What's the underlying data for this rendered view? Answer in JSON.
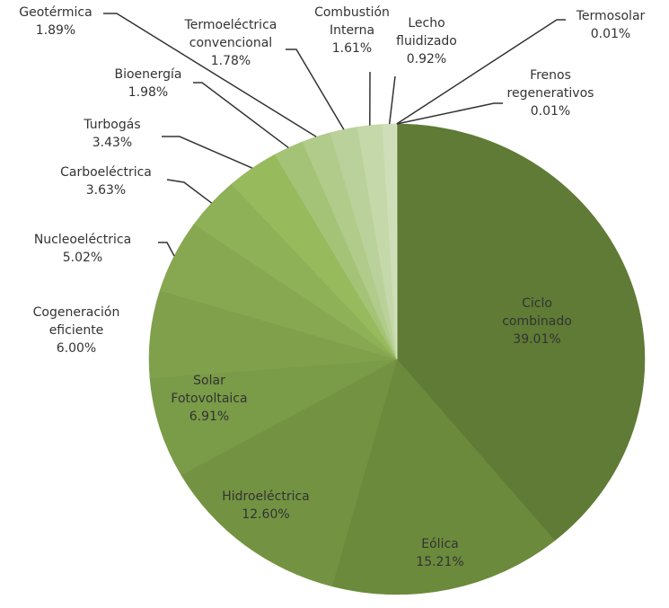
{
  "chart_data": {
    "type": "pie",
    "categories": [
      "Ciclo combinado",
      "Eólica",
      "Hidroeléctrica",
      "Solar Fotovoltaica",
      "Cogeneración eficiente",
      "Nucleoeléctrica",
      "Carboeléctrica",
      "Turbogás",
      "Bioenergía",
      "Geotérmica",
      "Termoeléctrica convencional",
      "Combustión Interna",
      "Lecho fluidizado",
      "Termosolar",
      "Frenos regenerativos"
    ],
    "values": [
      39.01,
      15.21,
      12.6,
      6.91,
      6.0,
      5.02,
      3.63,
      3.43,
      1.98,
      1.89,
      1.78,
      1.61,
      0.92,
      0.01,
      0.01
    ],
    "value_labels": [
      "39.01%",
      "15.21%",
      "12.60%",
      "6.91%",
      "6.00%",
      "5.02%",
      "3.63%",
      "3.43%",
      "1.98%",
      "1.89%",
      "1.78%",
      "1.61%",
      "0.92%",
      "0.01%",
      "0.01%"
    ],
    "colors": [
      "#5f7b35",
      "#6b8a3b",
      "#739342",
      "#7a9b47",
      "#80a04c",
      "#87a851",
      "#8eb056",
      "#97ba5d",
      "#a5c377",
      "#b1cb8a",
      "#bbd19b",
      "#c5d8a9",
      "#cfdeb8",
      "#d8e4c6",
      "#e0eacf"
    ]
  }
}
